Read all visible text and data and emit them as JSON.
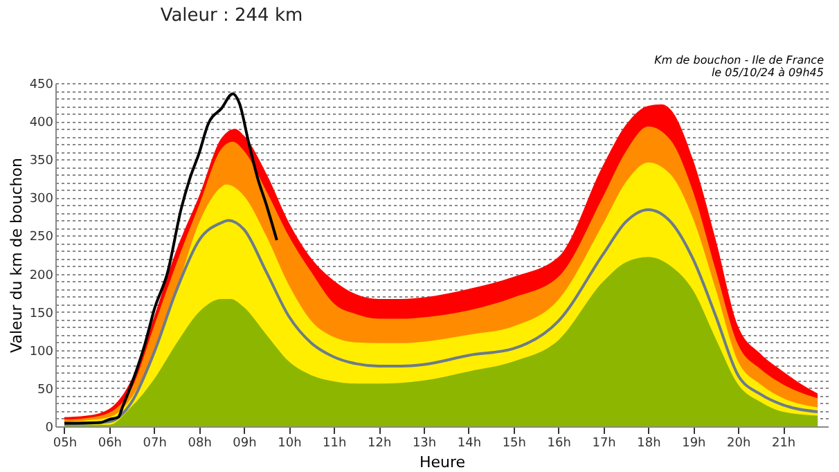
{
  "chart_data": {
    "type": "area",
    "title": "Valeur : 244 km",
    "annotations": [
      "Km de bouchon - Ile de France",
      "le 05/10/24 à 09h45"
    ],
    "xlabel": "Heure",
    "ylabel": "Valeur du  km de bouchon",
    "xlim": [
      4.8,
      22
    ],
    "ylim": [
      0,
      450
    ],
    "xticks": [
      {
        "value": 5,
        "label": "05h"
      },
      {
        "value": 6,
        "label": "06h"
      },
      {
        "value": 7,
        "label": "07h"
      },
      {
        "value": 8,
        "label": "08h"
      },
      {
        "value": 9,
        "label": "09h"
      },
      {
        "value": 10,
        "label": "10h"
      },
      {
        "value": 11,
        "label": "11h"
      },
      {
        "value": 12,
        "label": "12h"
      },
      {
        "value": 13,
        "label": "13h"
      },
      {
        "value": 14,
        "label": "14h"
      },
      {
        "value": 15,
        "label": "15h"
      },
      {
        "value": 16,
        "label": "16h"
      },
      {
        "value": 17,
        "label": "17h"
      },
      {
        "value": 18,
        "label": "18h"
      },
      {
        "value": 19,
        "label": "19h"
      },
      {
        "value": 20,
        "label": "20h"
      },
      {
        "value": 21,
        "label": "21h"
      }
    ],
    "yticks": [
      0,
      {
        "value": 10,
        "label": null
      },
      {
        "value": 20,
        "label": null
      },
      {
        "value": 30,
        "label": null
      },
      {
        "value": 40,
        "label": null
      },
      50,
      {
        "value": 60,
        "label": null
      },
      {
        "value": 70,
        "label": null
      },
      {
        "value": 80,
        "label": null
      },
      {
        "value": 90,
        "label": null
      },
      100,
      {
        "value": 110,
        "label": null
      },
      {
        "value": 120,
        "label": null
      },
      {
        "value": 130,
        "label": null
      },
      {
        "value": 140,
        "label": null
      },
      150,
      {
        "value": 160,
        "label": null
      },
      {
        "value": 170,
        "label": null
      },
      {
        "value": 180,
        "label": null
      },
      {
        "value": 190,
        "label": null
      },
      200,
      {
        "value": 210,
        "label": null
      },
      {
        "value": 220,
        "label": null
      },
      {
        "value": 230,
        "label": null
      },
      {
        "value": 240,
        "label": null
      },
      250,
      {
        "value": 260,
        "label": null
      },
      {
        "value": 270,
        "label": null
      },
      {
        "value": 280,
        "label": null
      },
      {
        "value": 290,
        "label": null
      },
      300,
      {
        "value": 310,
        "label": null
      },
      {
        "value": 320,
        "label": null
      },
      {
        "value": 330,
        "label": null
      },
      {
        "value": 340,
        "label": null
      },
      350,
      {
        "value": 360,
        "label": null
      },
      {
        "value": 370,
        "label": null
      },
      {
        "value": 380,
        "label": null
      },
      {
        "value": 390,
        "label": null
      },
      400,
      {
        "value": 410,
        "label": null
      },
      {
        "value": 420,
        "label": null
      },
      {
        "value": 430,
        "label": null
      },
      {
        "value": 440,
        "label": null
      },
      450
    ],
    "grid": "y",
    "line_style": "solid",
    "series": [
      {
        "color": "#ff0000",
        "x": [
          5,
          5.5,
          6,
          6.5,
          7,
          7.5,
          8,
          8.5,
          8.8,
          9,
          9.5,
          10,
          10.5,
          11,
          11.5,
          12,
          12.5,
          13,
          14,
          15,
          16,
          17,
          17.5,
          18,
          18.3,
          18.5,
          19,
          19.5,
          20,
          20.5,
          21,
          21.5,
          21.77
        ],
        "values": [
          12,
          14,
          23,
          62,
          144,
          232,
          302,
          378,
          390,
          381,
          331,
          267,
          220,
          191,
          173,
          167,
          167,
          169,
          180,
          196,
          222,
          343,
          395,
          420,
          422,
          415,
          349,
          245,
          131,
          95,
          72,
          52,
          43
        ]
      },
      {
        "color": "#ff8c00",
        "x": [
          5,
          5.5,
          6,
          6.5,
          7,
          7.5,
          8,
          8.5,
          8.75,
          9,
          9.5,
          10,
          10.5,
          11,
          11.5,
          12,
          12.5,
          13,
          14,
          15,
          16,
          17,
          17.5,
          18,
          18.5,
          19,
          19.5,
          20,
          20.5,
          21,
          21.77
        ],
        "values": [
          9,
          11,
          18,
          50,
          132,
          214,
          290,
          364,
          373,
          361,
          308,
          249,
          202,
          161,
          147,
          141,
          141,
          143,
          152,
          169,
          196,
          302,
          360,
          393,
          375,
          307,
          205,
          107,
          75,
          55,
          37
        ]
      },
      {
        "color": "#ffee00",
        "x": [
          5,
          5.5,
          6,
          6.5,
          7,
          7.5,
          8,
          8.5,
          8.6,
          9,
          9.5,
          10,
          10.5,
          11,
          11.5,
          12,
          12.5,
          13,
          14,
          15,
          16,
          17,
          17.5,
          18,
          18.5,
          19,
          19.5,
          20,
          20.5,
          21,
          21.77
        ],
        "values": [
          6,
          8,
          12,
          38,
          97,
          179,
          267,
          314,
          317,
          302,
          249,
          185,
          138,
          117,
          110,
          109,
          109,
          111,
          120,
          131,
          166,
          266,
          320,
          346,
          330,
          272,
          180,
          85,
          55,
          37,
          25
        ]
      },
      {
        "color": "#8db600",
        "x": [
          5,
          5.5,
          6,
          6.5,
          7,
          7.5,
          8,
          8.5,
          8.7,
          9,
          9.5,
          10,
          10.5,
          11,
          11.5,
          12,
          12.5,
          13,
          14,
          15,
          16,
          17,
          17.5,
          18,
          18.5,
          19,
          19.5,
          20,
          20.5,
          21,
          21.77
        ],
        "values": [
          2,
          2,
          2,
          26,
          62,
          109,
          150,
          167,
          167,
          156,
          120,
          85,
          67,
          59,
          56,
          56,
          57,
          60,
          72,
          85,
          113,
          190,
          215,
          222,
          210,
          178,
          115,
          55,
          32,
          19,
          14
        ]
      },
      {
        "type": "line",
        "color": "#6c7b8b",
        "x": [
          5,
          5.5,
          6,
          6.5,
          7,
          7.5,
          8,
          8.5,
          8.65,
          9,
          9.5,
          10,
          10.5,
          11,
          11.5,
          12,
          12.5,
          13,
          14,
          15,
          16,
          17,
          17.5,
          18,
          18.5,
          19,
          19.5,
          20,
          20.5,
          21,
          21.77
        ],
        "values": [
          3,
          4,
          6,
          32,
          97,
          179,
          244,
          267,
          270,
          258,
          202,
          144,
          109,
          91,
          82,
          79,
          79,
          81,
          93,
          102,
          138,
          226,
          268,
          284,
          268,
          219,
          145,
          67,
          42,
          28,
          19
        ]
      },
      {
        "type": "line",
        "color": "#000000",
        "x": [
          5,
          5.8,
          6,
          6.2,
          6.3,
          6.5,
          6.8,
          7,
          7.3,
          7.6,
          7.8,
          8,
          8.2,
          8.5,
          8.75,
          8.9,
          9.1,
          9.3,
          9.5,
          9.73
        ],
        "values": [
          4,
          5,
          9,
          12,
          26,
          56,
          109,
          153,
          202,
          285,
          326,
          358,
          396,
          417,
          436,
          423,
          373,
          326,
          290,
          244
        ]
      }
    ]
  }
}
